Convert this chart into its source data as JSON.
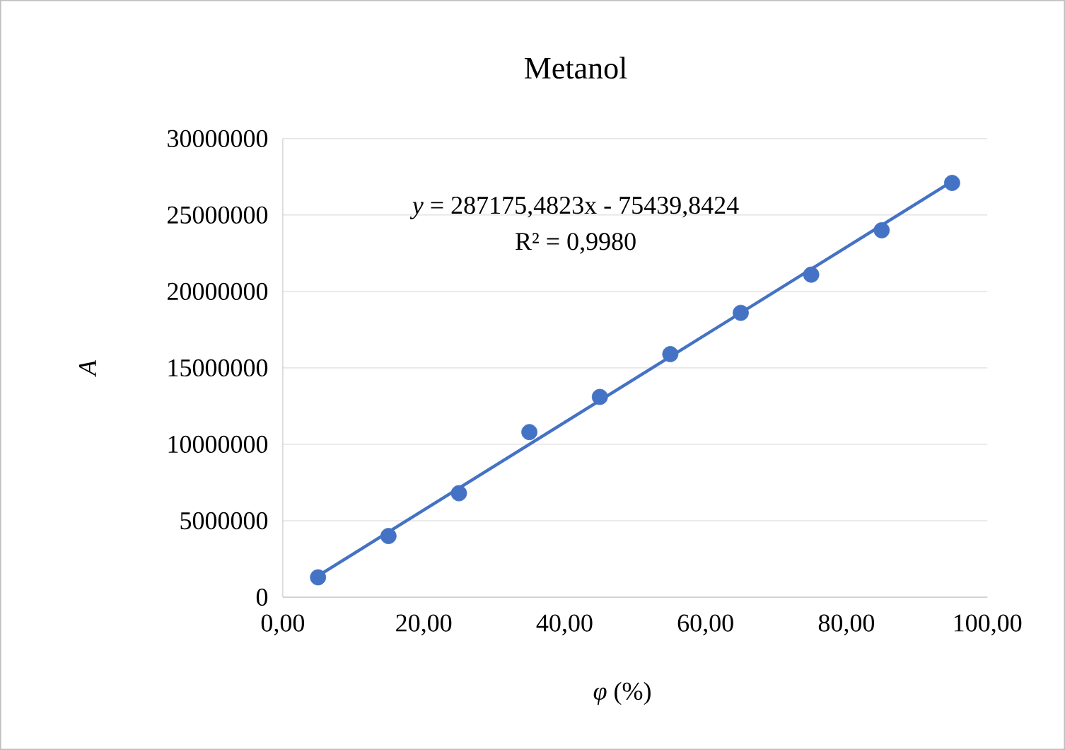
{
  "chart_data": {
    "type": "scatter",
    "title": "Metanol",
    "xlabel": "*φ* (%)",
    "ylabel": "A",
    "xlim": [
      0,
      100
    ],
    "ylim": [
      0,
      30000000
    ],
    "xticks": [
      {
        "value": 0,
        "label": "0,00"
      },
      {
        "value": 20,
        "label": "20,00"
      },
      {
        "value": 40,
        "label": "40,00"
      },
      {
        "value": 60,
        "label": "60,00"
      },
      {
        "value": 80,
        "label": "80,00"
      },
      {
        "value": 100,
        "label": "100,00"
      }
    ],
    "yticks": [
      0,
      5000000,
      10000000,
      15000000,
      20000000,
      25000000,
      30000000
    ],
    "grid": "y",
    "annotations": [
      "*y* = 287175,4823x - 75439,8424",
      "R² = 0,9980"
    ],
    "series": [
      {
        "marker": "circle",
        "color": "#4472c4",
        "x": [
          5,
          15,
          25,
          35,
          45,
          55,
          65,
          75,
          85,
          95
        ],
        "values": [
          1300000,
          4000000,
          6800000,
          10800000,
          13100000,
          15900000,
          18600000,
          21100000,
          24000000,
          27100000
        ]
      },
      {
        "type": "line",
        "marker": "none",
        "color": "#4472c4",
        "x": [
          5,
          95
        ],
        "values": [
          1400000,
          27200000
        ]
      }
    ]
  }
}
